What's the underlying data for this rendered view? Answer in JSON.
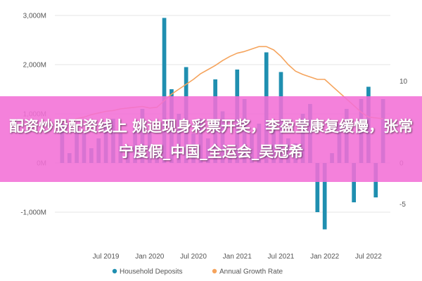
{
  "chart_data": {
    "type": "bar",
    "series": [
      {
        "name": "Household Deposits",
        "color": "#1f8fb0",
        "type": "bar",
        "axis": "left",
        "x": [
          "2019-01",
          "2019-02",
          "2019-03",
          "2019-04",
          "2019-05",
          "2019-06",
          "2019-07",
          "2019-08",
          "2019-09",
          "2019-10",
          "2019-11",
          "2019-12",
          "2020-01",
          "2020-02",
          "2020-03",
          "2020-04",
          "2020-05",
          "2020-06",
          "2020-07",
          "2020-08",
          "2020-09",
          "2020-10",
          "2020-11",
          "2020-12",
          "2021-01",
          "2021-02",
          "2021-03",
          "2021-04",
          "2021-05",
          "2021-06",
          "2021-07",
          "2021-08",
          "2021-09",
          "2021-10",
          "2021-11",
          "2021-12",
          "2022-01",
          "2022-02",
          "2022-03",
          "2022-04",
          "2022-05",
          "2022-06",
          "2022-07",
          "2022-08",
          "2022-09"
        ],
        "values": [
          800,
          200,
          700,
          600,
          300,
          500,
          800,
          900,
          600,
          300,
          700,
          1100,
          650,
          250,
          2950,
          1500,
          1000,
          1950,
          600,
          900,
          500,
          1700,
          1050,
          100,
          1900,
          1300,
          600,
          800,
          2250,
          800,
          1850,
          500,
          400,
          1000,
          1200,
          -1000,
          -1350,
          200,
          800,
          1100,
          -800,
          1300,
          1550,
          -700,
          1300
        ]
      },
      {
        "name": "Annual Growth Rate",
        "color": "#f5a45d",
        "type": "line",
        "axis": "right",
        "x": [
          "2019-01",
          "2019-02",
          "2019-03",
          "2019-04",
          "2019-05",
          "2019-06",
          "2019-07",
          "2019-08",
          "2019-09",
          "2019-10",
          "2019-11",
          "2019-12",
          "2020-01",
          "2020-02",
          "2020-03",
          "2020-04",
          "2020-05",
          "2020-06",
          "2020-07",
          "2020-08",
          "2020-09",
          "2020-10",
          "2020-11",
          "2020-12",
          "2021-01",
          "2021-02",
          "2021-03",
          "2021-04",
          "2021-05",
          "2021-06",
          "2021-07",
          "2021-08",
          "2021-09",
          "2021-10",
          "2021-11",
          "2021-12",
          "2022-01",
          "2022-02",
          "2022-03",
          "2022-04",
          "2022-05",
          "2022-06",
          "2022-07",
          "2022-08",
          "2022-09"
        ],
        "values": [
          5.0,
          5.1,
          5.4,
          5.6,
          5.9,
          6.1,
          6.3,
          6.4,
          6.6,
          6.7,
          6.8,
          6.9,
          6.7,
          6.8,
          7.6,
          8.4,
          9.0,
          9.6,
          10.2,
          10.9,
          11.4,
          11.9,
          12.5,
          13.0,
          13.4,
          13.6,
          13.9,
          14.2,
          14.2,
          13.8,
          13.0,
          12.0,
          11.2,
          10.8,
          10.5,
          10.2,
          10.2,
          9.4,
          8.6,
          7.8,
          7.0,
          6.2,
          5.6,
          5.5,
          5.4
        ]
      }
    ],
    "y_left": {
      "ticks": [
        "-1,000M",
        "0M",
        "1,000M",
        "2,000M",
        "3,000M"
      ],
      "tick_values": [
        -1000,
        0,
        1000,
        2000,
        3000
      ],
      "range": [
        -1600,
        3200
      ]
    },
    "y_right": {
      "ticks": [
        "-5",
        "0",
        "5",
        "10"
      ],
      "tick_values": [
        -5,
        0,
        5,
        10
      ],
      "range": [
        -9.6,
        19.2
      ]
    },
    "x_ticks": {
      "labels": [
        "Jul 2019",
        "Jan 2020",
        "Jul 2020",
        "Jan 2021",
        "Jul 2021",
        "Jan 2022",
        "Jul 2022"
      ],
      "dates": [
        "2019-07",
        "2020-01",
        "2020-07",
        "2021-01",
        "2021-07",
        "2022-01",
        "2022-07"
      ]
    },
    "x_range": [
      "2018-12",
      "2022-10"
    ],
    "grid": true,
    "legend": "bottom-center"
  },
  "overlay": {
    "text": "配资炒股配资线上 姚迪现身彩票开奖，李盈莹康复缓慢，张常宁度假_中国_全运会_吴冠希",
    "color": "#f270d6"
  }
}
